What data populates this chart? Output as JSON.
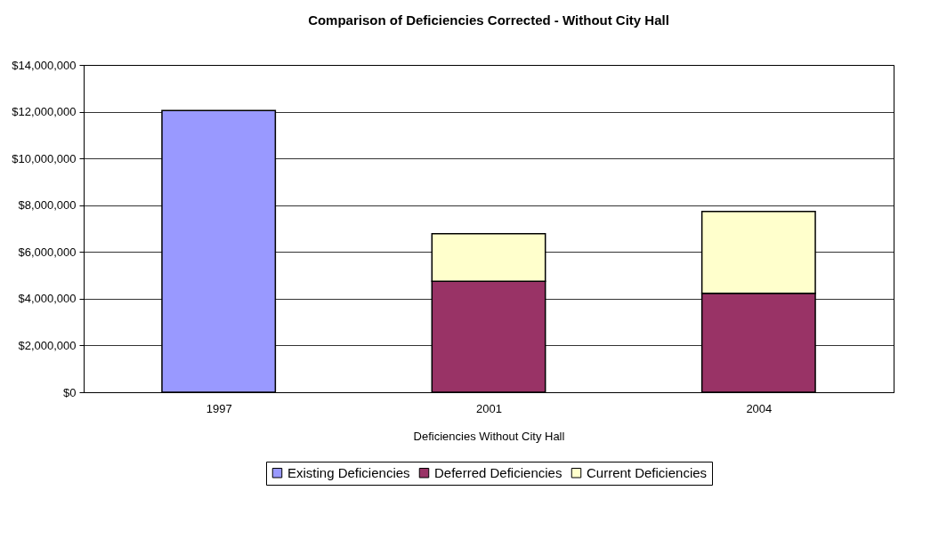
{
  "chart_data": {
    "type": "bar",
    "stacked": true,
    "title": "Comparison of Deficiencies Corrected - Without City Hall",
    "xlabel": "Deficiencies Without City Hall",
    "categories": [
      "1997",
      "2001",
      "2004"
    ],
    "series": [
      {
        "name": "Existing Deficiencies",
        "color": "#9999ff",
        "values": [
          12050000,
          null,
          null
        ]
      },
      {
        "name": "Deferred Deficiencies",
        "color": "#993366",
        "values": [
          null,
          4750000,
          4230000
        ]
      },
      {
        "name": "Current Deficiencies",
        "color": "#ffffcc",
        "values": [
          null,
          2030000,
          3500000
        ]
      }
    ],
    "ylim": [
      0,
      14000000
    ],
    "yticks": [
      {
        "value": 0,
        "label": "$0"
      },
      {
        "value": 2000000,
        "label": "$2,000,000"
      },
      {
        "value": 4000000,
        "label": "$4,000,000"
      },
      {
        "value": 6000000,
        "label": "$6,000,000"
      },
      {
        "value": 8000000,
        "label": "$8,000,000"
      },
      {
        "value": 10000000,
        "label": "$10,000,000"
      },
      {
        "value": 12000000,
        "label": "$12,000,000"
      },
      {
        "value": 14000000,
        "label": "$14,000,000"
      }
    ],
    "grid": "y",
    "legend": "bottom"
  }
}
